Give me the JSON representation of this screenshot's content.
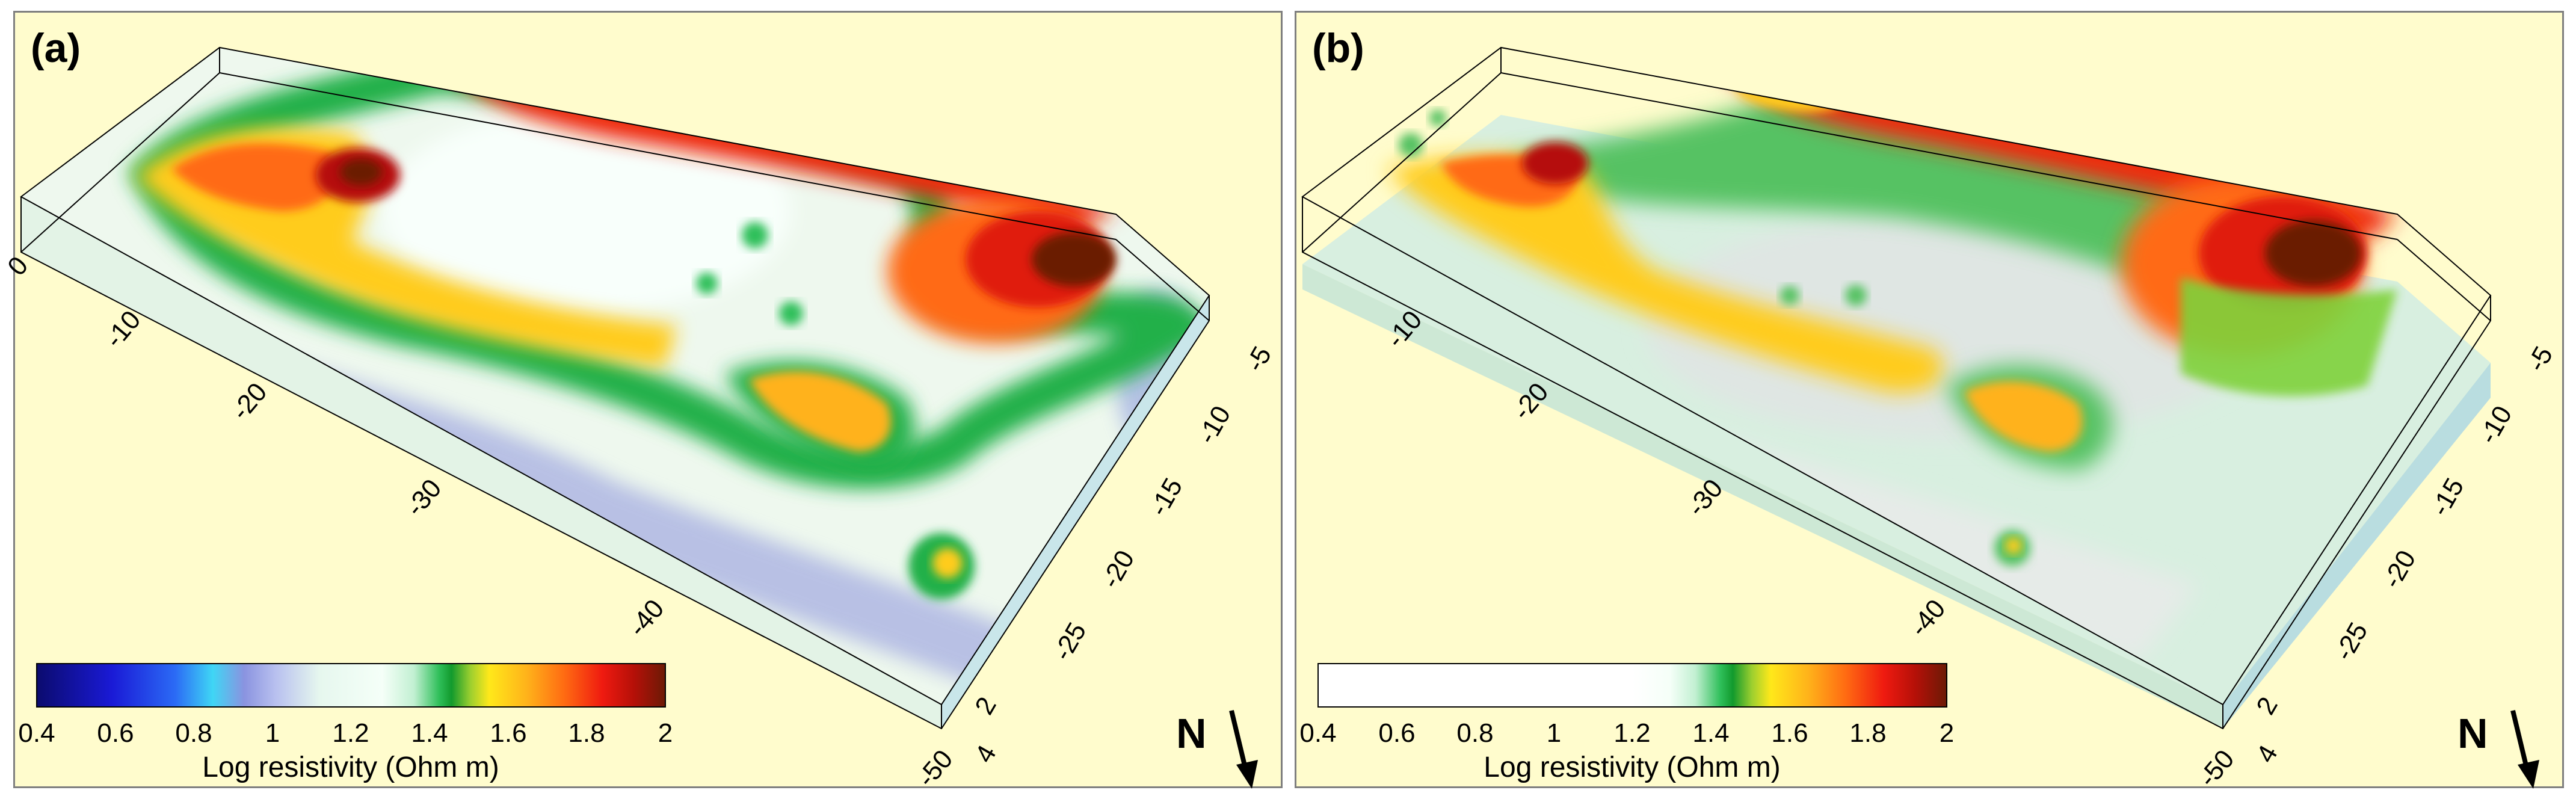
{
  "panels": [
    {
      "label": "(a)",
      "colorbar": {
        "ticks": [
          "0.4",
          "0.6",
          "0.8",
          "1",
          "1.2",
          "1.4",
          "1.6",
          "1.8",
          "2"
        ],
        "title": "Log resistivity (Ohm m)",
        "stops": [
          "#0b0b6e",
          "#1a1ad6",
          "#2b6af5",
          "#3fd6f5",
          "#8a93e0",
          "#b8c0ef",
          "#e6f7ee",
          "#f5fff8",
          "#c2f0d2",
          "#2fbf5a",
          "#129a2d",
          "#9ccf2f",
          "#ffe81a",
          "#ffb21a",
          "#ff6a12",
          "#ef1a10",
          "#b51008",
          "#6b1a06"
        ]
      },
      "left_axis_ticks": [
        "0",
        "-10",
        "-20",
        "-30",
        "-40",
        "-50"
      ],
      "right_axis_ticks": [
        "-5",
        "-10",
        "-15",
        "-20",
        "-25"
      ],
      "depth_ticks": [
        "2",
        "4"
      ],
      "north_label": "N"
    },
    {
      "label": "(b)",
      "colorbar": {
        "ticks": [
          "0.4",
          "0.6",
          "0.8",
          "1",
          "1.2",
          "1.4",
          "1.6",
          "1.8",
          "2"
        ],
        "title": "Log resistivity (Ohm m)",
        "stops": [
          "#ffffff",
          "#ffffff",
          "#ffffff",
          "#ffffff",
          "#ffffff",
          "#f5fff8",
          "#c2f0d2",
          "#2fbf5a",
          "#129a2d",
          "#9ccf2f",
          "#ffe81a",
          "#ffb21a",
          "#ff6a12",
          "#ef1a10",
          "#b51008",
          "#6b1a06"
        ]
      },
      "left_axis_ticks": [
        "-10",
        "-20",
        "-30",
        "-40",
        "-50"
      ],
      "right_axis_ticks": [
        "-5",
        "-10",
        "-15",
        "-20",
        "-25"
      ],
      "depth_ticks": [
        "2",
        "4"
      ],
      "north_label": "N"
    }
  ],
  "colors": {
    "panel_bg": "#fffccd",
    "model_bg_a": "#eef8ee",
    "model_bg_b": "#d8efe0"
  }
}
